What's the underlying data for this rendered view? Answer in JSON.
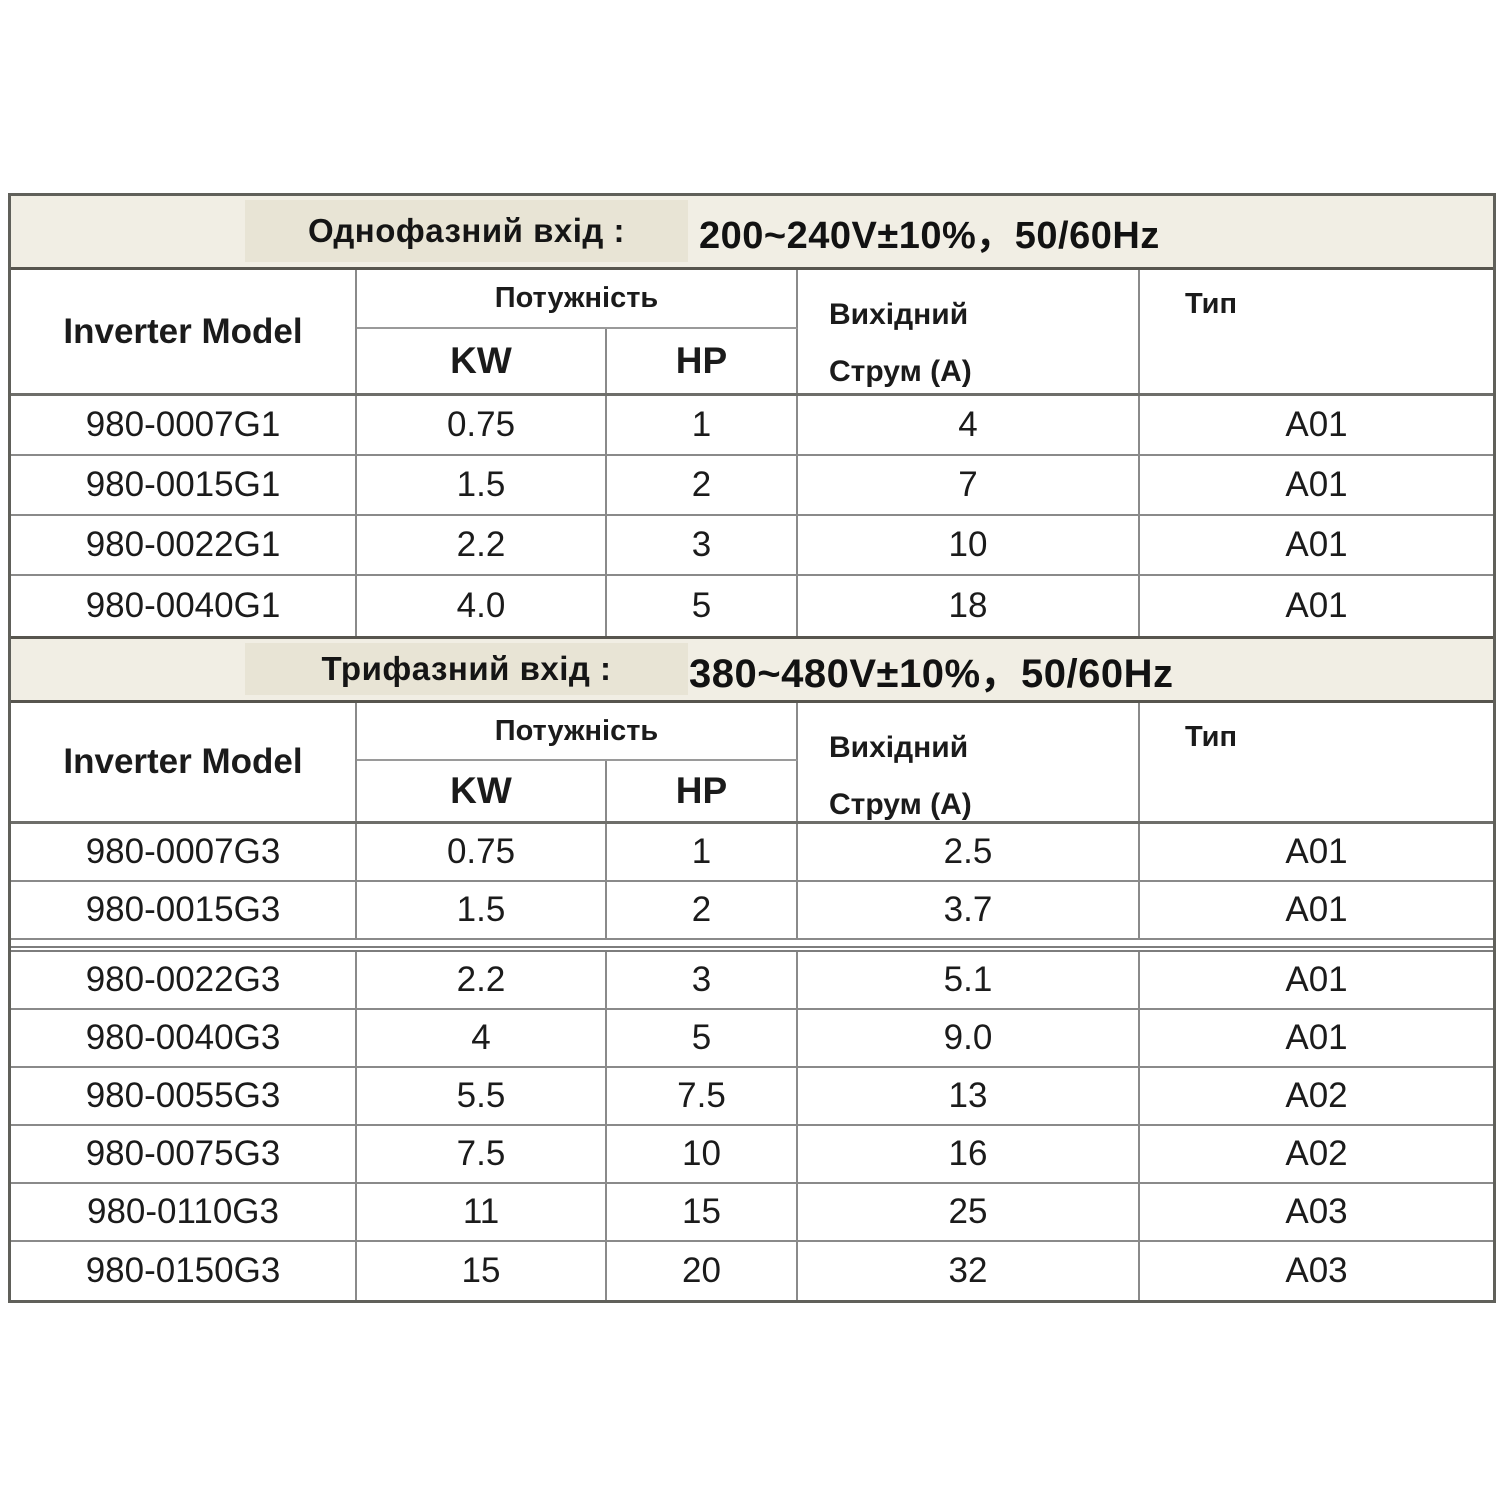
{
  "band1": {
    "label": "Однофазний вхід :",
    "spec": "200~240V±10%，50/60Hz"
  },
  "table1": {
    "header": {
      "model": "Inverter Model",
      "power": "Потужність",
      "kw": "KW",
      "hp": "HP",
      "current_line1": "Вихідний",
      "current_line2": "Струм (А)",
      "type": "Тип"
    },
    "rows": [
      {
        "model": "980-0007G1",
        "kw": "0.75",
        "hp": "1",
        "current": "4",
        "type": "A01"
      },
      {
        "model": "980-0015G1",
        "kw": "1.5",
        "hp": "2",
        "current": "7",
        "type": "A01"
      },
      {
        "model": "980-0022G1",
        "kw": "2.2",
        "hp": "3",
        "current": "10",
        "type": "A01"
      },
      {
        "model": "980-0040G1",
        "kw": "4.0",
        "hp": "5",
        "current": "18",
        "type": "A01"
      }
    ]
  },
  "band2": {
    "label": "Трифазний вхід :",
    "spec": "380~480V±10%，50/60Hz"
  },
  "table2": {
    "header": {
      "model": "Inverter Model",
      "power": "Потужність",
      "kw": "KW",
      "hp": "HP",
      "current_line1": "Вихідний",
      "current_line2": "Струм (А)",
      "type": "Тип"
    },
    "rows": [
      {
        "model": "980-0007G3",
        "kw": "0.75",
        "hp": "1",
        "current": "2.5",
        "type": "A01"
      },
      {
        "model": "980-0015G3",
        "kw": "1.5",
        "hp": "2",
        "current": "3.7",
        "type": "A01"
      },
      {
        "model": "980-0022G3",
        "kw": "2.2",
        "hp": "3",
        "current": "5.1",
        "type": "A01"
      },
      {
        "model": "980-0040G3",
        "kw": "4",
        "hp": "5",
        "current": "9.0",
        "type": "A01"
      },
      {
        "model": "980-0055G3",
        "kw": "5.5",
        "hp": "7.5",
        "current": "13",
        "type": "A02"
      },
      {
        "model": "980-0075G3",
        "kw": "7.5",
        "hp": "10",
        "current": "16",
        "type": "A02"
      },
      {
        "model": "980-0110G3",
        "kw": "11",
        "hp": "15",
        "current": "25",
        "type": "A03"
      },
      {
        "model": "980-0150G3",
        "kw": "15",
        "hp": "20",
        "current": "32",
        "type": "A03"
      }
    ]
  },
  "colors": {
    "band_bg": "#f1eee4",
    "band_box_bg": "#e8e4d5",
    "grid_border": "#8a8a8a",
    "outer_border": "#60605a",
    "text": "#1b1b1b"
  }
}
